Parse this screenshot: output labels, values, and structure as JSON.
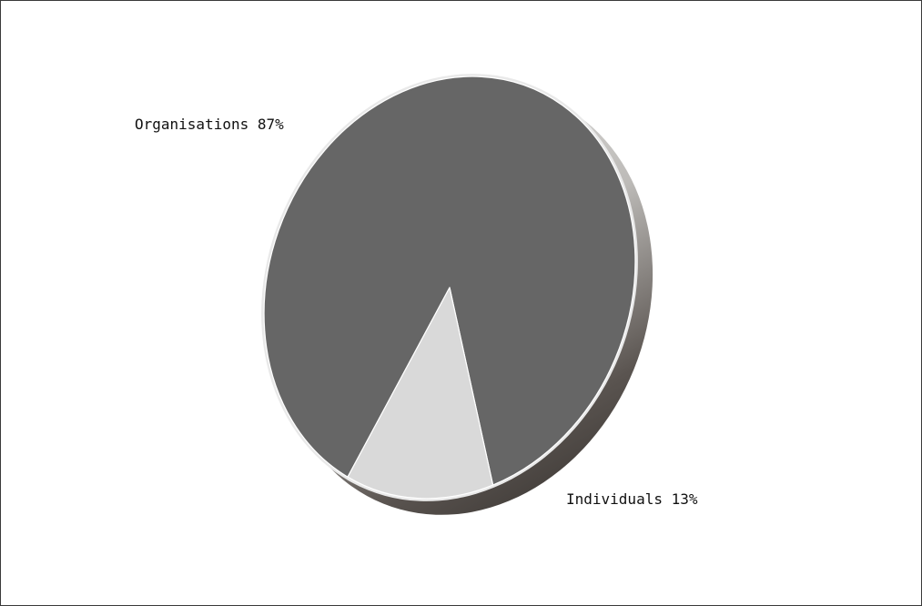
{
  "chart_data": {
    "type": "pie",
    "style": "3d",
    "slices": [
      {
        "label": "Organisations",
        "value": 87,
        "text": "Organisations 87%",
        "color": "#666666"
      },
      {
        "label": "Individuals",
        "value": 13,
        "text": "Individuals 13%",
        "color": "#d9d9d9"
      }
    ]
  }
}
